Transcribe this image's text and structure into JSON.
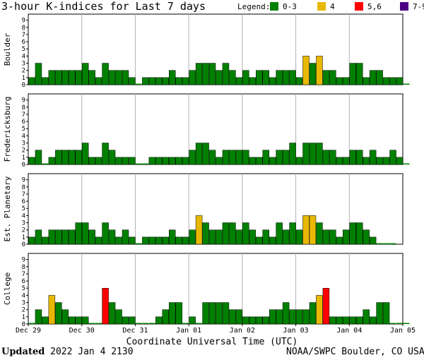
{
  "title": "3-hour K-indices for Last 7 days",
  "legend": {
    "label": "Legend:",
    "items": [
      {
        "label": "0-3",
        "color": "#008000"
      },
      {
        "label": "4",
        "color": "#e8b800"
      },
      {
        "label": "5,6",
        "color": "#ff0000"
      },
      {
        "label": "7-9",
        "color": "#4b0082"
      }
    ]
  },
  "footer": {
    "updated_label": "Updated",
    "updated_value": "2022 Jan  4 2130",
    "source": "NOAA/SWPC Boulder, CO USA"
  },
  "chart_data": {
    "type": "bar",
    "xlabel": "Coordinate Universal Time (UTC)",
    "x_ticks": [
      "Dec 29",
      "Dec 30",
      "Dec 31",
      "Jan 01",
      "Jan 02",
      "Jan 03",
      "Jan 04",
      "Jan 05"
    ],
    "ylim": [
      0,
      9
    ],
    "y_ticks": [
      0,
      1,
      2,
      3,
      4,
      5,
      6,
      7,
      8,
      9
    ],
    "panels": [
      {
        "name": "Boulder",
        "values": [
          1,
          3,
          1,
          2,
          2,
          2,
          2,
          2,
          3,
          2,
          1,
          3,
          2,
          2,
          2,
          1,
          0,
          1,
          1,
          1,
          1,
          2,
          1,
          1,
          2,
          3,
          3,
          3,
          2,
          3,
          2,
          1,
          2,
          1,
          2,
          2,
          1,
          2,
          2,
          2,
          1,
          4,
          3,
          4,
          2,
          2,
          1,
          1,
          3,
          3,
          1,
          2,
          2,
          1,
          1,
          1,
          0
        ]
      },
      {
        "name": "Fredericksburg",
        "values": [
          1,
          2,
          0,
          1,
          2,
          2,
          2,
          2,
          3,
          1,
          1,
          3,
          2,
          1,
          1,
          1,
          0,
          0,
          1,
          1,
          1,
          1,
          1,
          1,
          2,
          3,
          3,
          2,
          1,
          2,
          2,
          2,
          2,
          1,
          1,
          2,
          1,
          2,
          2,
          3,
          1,
          3,
          3,
          3,
          2,
          2,
          1,
          1,
          2,
          2,
          1,
          2,
          1,
          1,
          2,
          1,
          0
        ]
      },
      {
        "name": "Est. Planetary",
        "values": [
          1,
          2,
          1,
          2,
          2,
          2,
          2,
          3,
          3,
          2,
          1,
          3,
          2,
          1,
          2,
          1,
          0,
          1,
          1,
          1,
          1,
          2,
          1,
          1,
          2,
          4,
          3,
          2,
          2,
          3,
          3,
          2,
          3,
          2,
          1,
          2,
          1,
          3,
          2,
          3,
          2,
          4,
          4,
          3,
          2,
          2,
          1,
          2,
          3,
          3,
          2,
          1,
          0,
          0,
          0
        ]
      },
      {
        "name": "College",
        "values": [
          0,
          2,
          1,
          4,
          3,
          2,
          1,
          1,
          1,
          0,
          0,
          5,
          3,
          2,
          1,
          1,
          0,
          0,
          0,
          1,
          2,
          3,
          3,
          0,
          1,
          0,
          3,
          3,
          3,
          3,
          2,
          2,
          1,
          1,
          1,
          1,
          2,
          2,
          3,
          2,
          2,
          2,
          3,
          4,
          5,
          1,
          1,
          1,
          1,
          1,
          2,
          1,
          3,
          3,
          0,
          0,
          0
        ]
      }
    ]
  }
}
